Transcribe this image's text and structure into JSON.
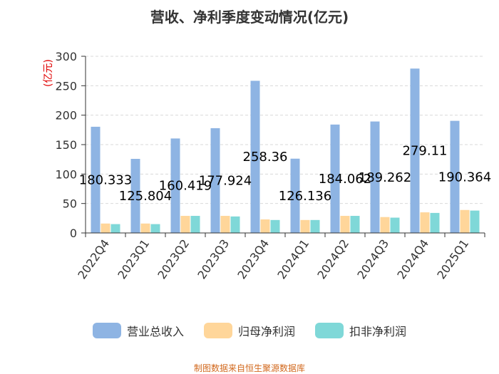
{
  "chart_data": {
    "type": "bar",
    "title": "营收、净利季度变动情况(亿元)",
    "ylabel": "(亿元)",
    "ylim": [
      0,
      300
    ],
    "yticks": [
      0,
      50,
      100,
      150,
      200,
      250,
      300
    ],
    "grid": true,
    "legend_position": "bottom",
    "categories": [
      "2022Q4",
      "2023Q1",
      "2023Q2",
      "2023Q3",
      "2023Q4",
      "2024Q1",
      "2024Q2",
      "2024Q3",
      "2024Q4",
      "2025Q1"
    ],
    "series": [
      {
        "name": "营业总收入",
        "color": "#8eb4e3",
        "values": [
          180.333,
          125.804,
          160.419,
          177.924,
          258.36,
          126.136,
          184.062,
          189.262,
          279.11,
          190.364
        ],
        "labels": [
          "180.333",
          "125.804",
          "160.419",
          "177.924",
          "258.36",
          "126.136",
          "184.062",
          "189.262",
          "279.11",
          "190.364"
        ]
      },
      {
        "name": "归母净利润",
        "color": "#ffd69a",
        "values": [
          16,
          16,
          29,
          29,
          23,
          22,
          29,
          27,
          35,
          39
        ]
      },
      {
        "name": "扣非净利润",
        "color": "#7fd8d8",
        "values": [
          15,
          15,
          29,
          28,
          22,
          22,
          29,
          26,
          34,
          38
        ]
      }
    ]
  },
  "source_note": "制图数据来自恒生聚源数据库"
}
